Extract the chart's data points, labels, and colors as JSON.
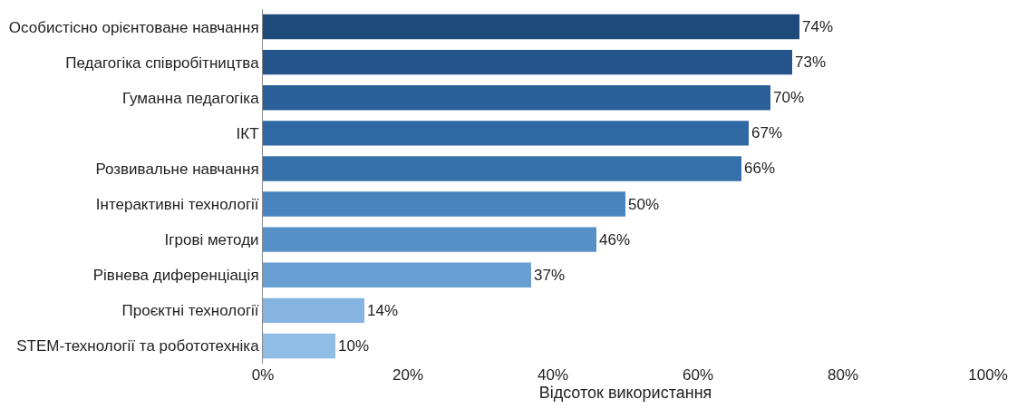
{
  "chart_data": {
    "type": "bar",
    "orientation": "horizontal",
    "xlabel": "Відсоток використання",
    "categories": [
      "Особистісно орієнтоване навчання",
      "Педагогіка співробітництва",
      "Гуманна педагогіка",
      "ІКТ",
      "Розвивальне навчання",
      "Інтерактивні технології",
      "Ігрові методи",
      "Рівнева диференціація",
      "Проєктні технології",
      "STEM-технології та робототехніка"
    ],
    "values": [
      74,
      73,
      70,
      67,
      66,
      50,
      46,
      37,
      14,
      10
    ],
    "value_labels": [
      "74%",
      "73%",
      "70%",
      "67%",
      "66%",
      "50%",
      "46%",
      "37%",
      "14%",
      "10%"
    ],
    "colors": [
      "#1e4a7a",
      "#24548a",
      "#2a5f97",
      "#3068a3",
      "#3670ab",
      "#4a84bf",
      "#5790c8",
      "#6a9fd3",
      "#85b4e0",
      "#8fbde6"
    ],
    "xlim": [
      0,
      100
    ],
    "xticks": [
      {
        "value": 0,
        "label": "0%"
      },
      {
        "value": 20,
        "label": "20%"
      },
      {
        "value": 40,
        "label": "40%"
      },
      {
        "value": 60,
        "label": "60%"
      },
      {
        "value": 80,
        "label": "80%"
      },
      {
        "value": 100,
        "label": "100%"
      }
    ],
    "grid": false
  }
}
